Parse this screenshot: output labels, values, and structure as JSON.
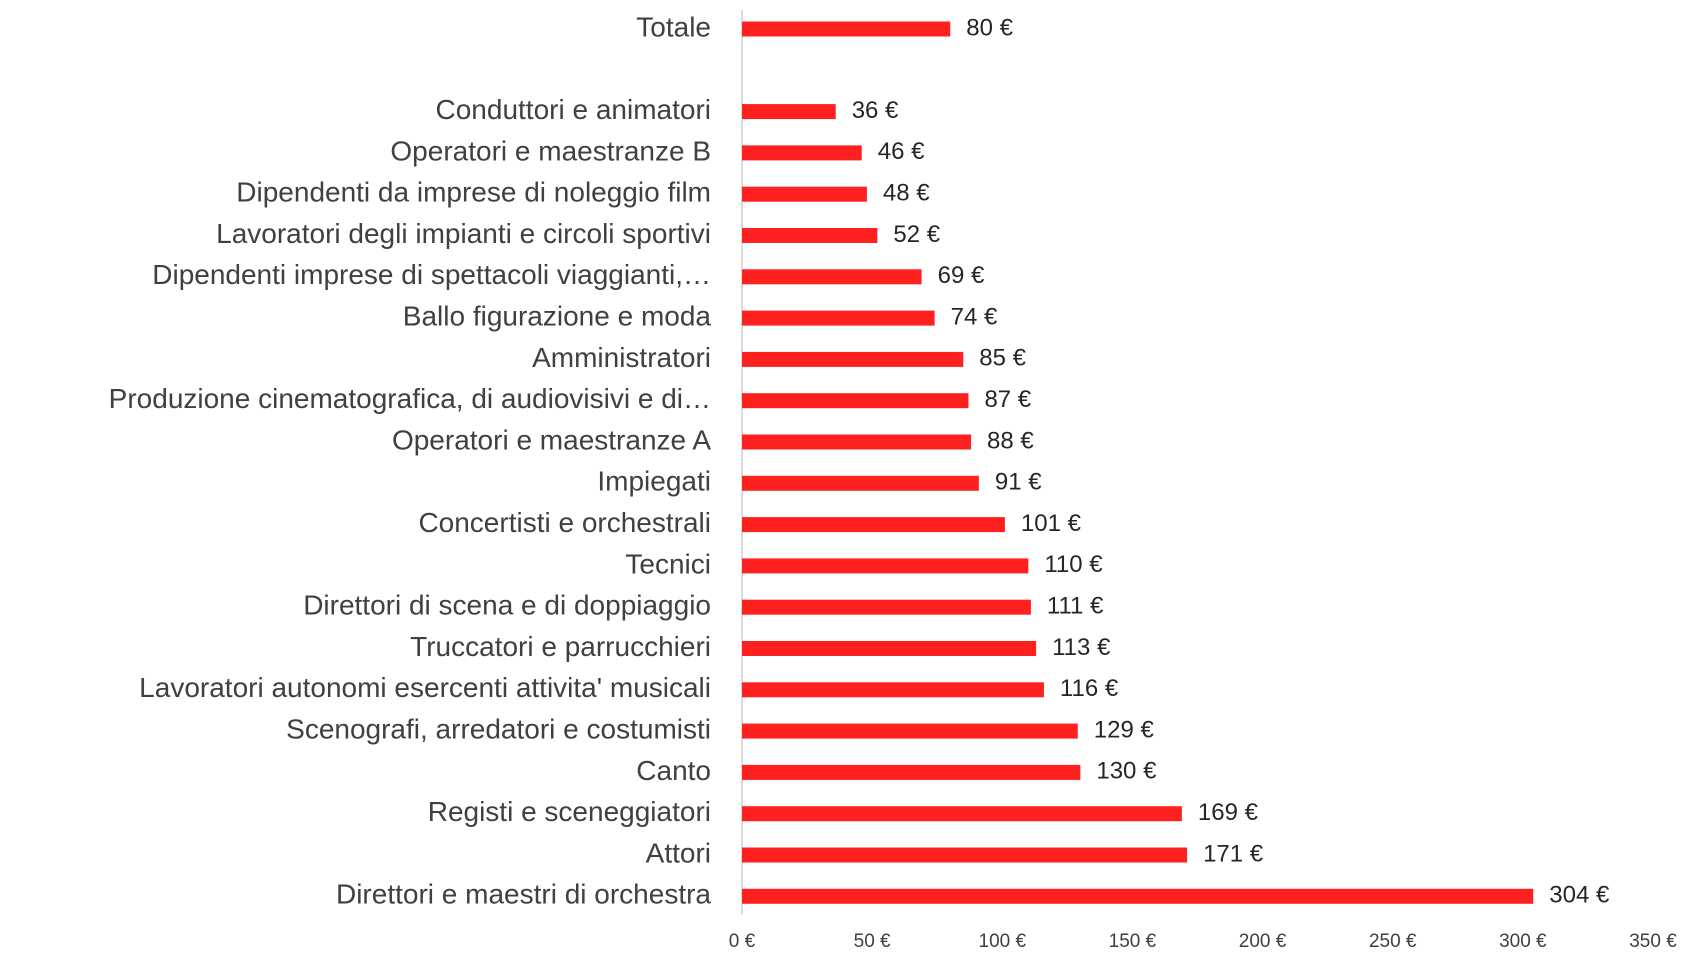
{
  "chart_data": {
    "type": "barh",
    "categories": [
      "Totale",
      null,
      "Conduttori e animatori",
      "Operatori e maestranze B",
      "Dipendenti da imprese di noleggio film",
      "Lavoratori degli impianti e circoli sportivi",
      "Dipendenti imprese di spettacoli viaggianti,…",
      "Ballo figurazione e moda",
      "Amministratori",
      "Produzione cinematografica, di audiovisivi e di…",
      "Operatori e maestranze A",
      "Impiegati",
      "Concertisti e orchestrali",
      "Tecnici",
      "Direttori di scena e di doppiaggio",
      "Truccatori e parrucchieri",
      "Lavoratori autonomi esercenti attivita' musicali",
      "Scenografi, arredatori e costumisti",
      "Canto",
      "Registi e sceneggiatori",
      "Attori",
      "Direttori e maestri di orchestra"
    ],
    "values": [
      80,
      null,
      36,
      46,
      48,
      52,
      69,
      74,
      85,
      87,
      88,
      91,
      101,
      110,
      111,
      113,
      116,
      129,
      130,
      169,
      171,
      304
    ],
    "value_labels": [
      "80 €",
      null,
      "36 €",
      "46 €",
      "48 €",
      "52 €",
      "69 €",
      "74 €",
      "85 €",
      "87 €",
      "88 €",
      "91 €",
      "101 €",
      "110 €",
      "111 €",
      "113 €",
      "116 €",
      "129 €",
      "130 €",
      "169 €",
      "171 €",
      "304 €"
    ],
    "color": "#ff2020",
    "xlim": [
      0,
      350
    ],
    "xticks": [
      {
        "value": 0,
        "label": "0 €"
      },
      {
        "value": 50,
        "label": "50 €"
      },
      {
        "value": 100,
        "label": "100 €"
      },
      {
        "value": 150,
        "label": "150 €"
      },
      {
        "value": 200,
        "label": "200 €"
      },
      {
        "value": 250,
        "label": "250 €"
      },
      {
        "value": 300,
        "label": "300 €"
      },
      {
        "value": 350,
        "label": "350 €"
      }
    ]
  }
}
